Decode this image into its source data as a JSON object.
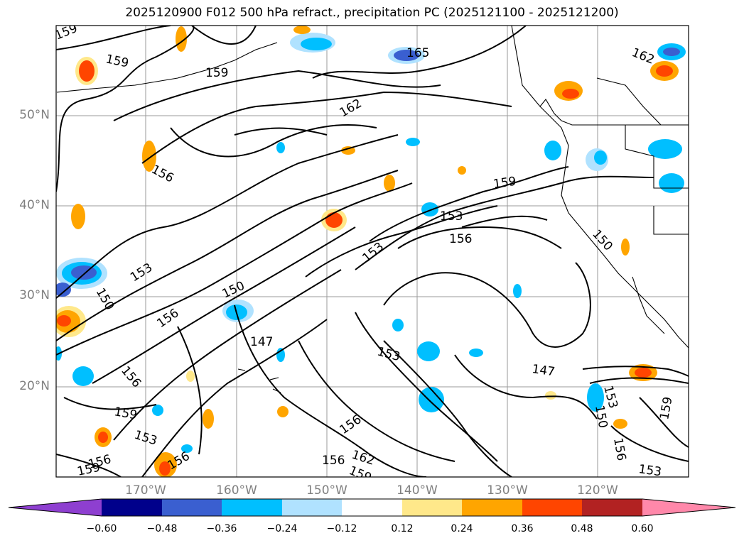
{
  "title": "2025120900 F012 500 hPa refract., precipitation PC (2025121100 - 2025121200)",
  "latitude_labels": [
    "50°N",
    "40°N",
    "30°N",
    "20°N"
  ],
  "longitude_labels": [
    "170°W",
    "160°W",
    "150°W",
    "140°W",
    "130°W",
    "120°W"
  ],
  "colorbar": {
    "ticks": [
      "−0.60",
      "−0.48",
      "−0.36",
      "−0.24",
      "−0.12",
      "0.12",
      "0.24",
      "0.36",
      "0.48",
      "0.60"
    ],
    "colors": [
      "#8e3fd0",
      "#00008b",
      "#3a5fd0",
      "#00bfff",
      "#b0e2ff",
      "#ffffff",
      "#ffe88a",
      "#ffa500",
      "#ff4500",
      "#b22222",
      "#ff88aa"
    ]
  },
  "contour_labels": [
    {
      "text": "159"
    },
    {
      "text": "159"
    },
    {
      "text": "159"
    },
    {
      "text": "165"
    },
    {
      "text": "162"
    },
    {
      "text": "162"
    },
    {
      "text": "156"
    },
    {
      "text": "159"
    },
    {
      "text": "153"
    },
    {
      "text": "156"
    },
    {
      "text": "153"
    },
    {
      "text": "150"
    },
    {
      "text": "150"
    },
    {
      "text": "156"
    },
    {
      "text": "150"
    },
    {
      "text": "147"
    },
    {
      "text": "153"
    },
    {
      "text": "147"
    },
    {
      "text": "153"
    },
    {
      "text": "156"
    },
    {
      "text": "159"
    },
    {
      "text": "153"
    },
    {
      "text": "156"
    },
    {
      "text": "156"
    },
    {
      "text": "162"
    },
    {
      "text": "156"
    },
    {
      "text": "159"
    },
    {
      "text": "156"
    },
    {
      "text": "159"
    },
    {
      "text": "153"
    },
    {
      "text": "156"
    },
    {
      "text": "150"
    },
    {
      "text": "153"
    },
    {
      "text": "159"
    }
  ]
}
